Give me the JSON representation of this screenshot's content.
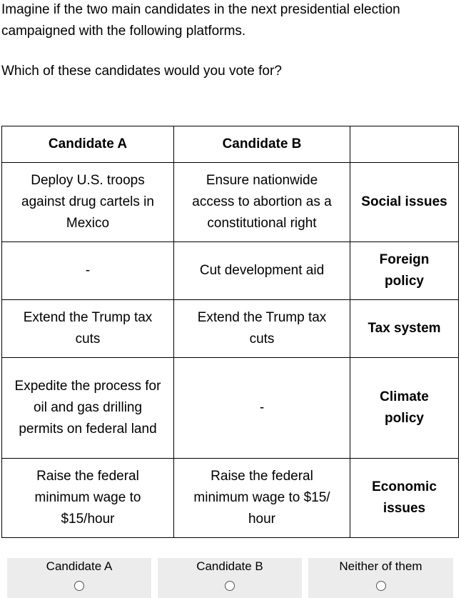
{
  "intro": {
    "line": "Imagine if the two main candidates in the next presidential election campaigned with the following platforms.",
    "question": "Which of these candidates would you vote for?"
  },
  "table": {
    "headers": [
      "Candidate A",
      "Candidate B",
      ""
    ],
    "rows": [
      {
        "a": "Deploy U.S. troops against drug cartels in Mexico",
        "b": "Ensure nationwide access to abortion as a constitutional right",
        "attribute": "Social issues"
      },
      {
        "a": "-",
        "b": "Cut development aid",
        "attribute": "Foreign policy"
      },
      {
        "a": "Extend the Trump tax cuts",
        "b": "Extend the Trump tax cuts",
        "attribute": "Tax system"
      },
      {
        "a": "Expedite the process for oil and gas drilling permits on federal land",
        "b": "-",
        "attribute": "Climate policy"
      },
      {
        "a": "Raise the federal minimum wage to $15/hour",
        "b": "Raise the federal minimum wage to $15/ hour",
        "attribute": "Economic issues"
      }
    ]
  },
  "choices": {
    "a": "Candidate A",
    "b": "Candidate B",
    "neither": "Neither of them"
  }
}
